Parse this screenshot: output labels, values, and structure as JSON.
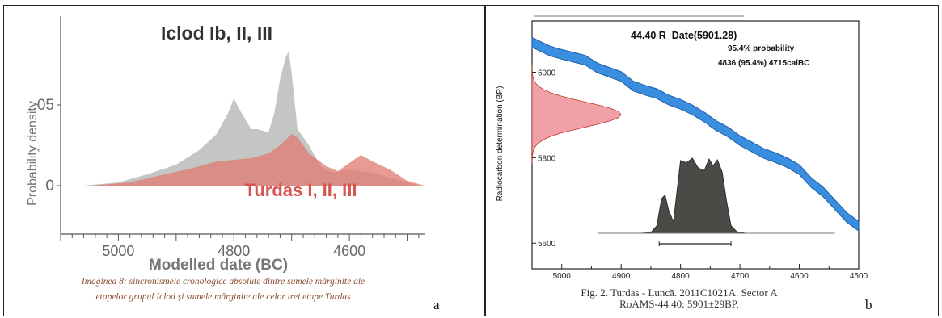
{
  "panel_a": {
    "letter": "a",
    "caption_line1": "Imaginea 8: sincronismele cronologice absolute dintre sumele mărginite ale",
    "caption_line2": "etapelor grupul Iclod și sumele mărginite ale celor trei etape Turdaș"
  },
  "panel_b": {
    "letter": "b",
    "caption_line1": "Fig. 2. Turdas - Luncă. 2011C1021A. Sector A",
    "caption_line2": "RoAMS-44.40: 5901±29BP."
  },
  "colors": {
    "grey_fill": "#b9bcb8",
    "red_fill": "#e07a72",
    "red_label": "#d9534f",
    "blue_curve": "#3a8ee0",
    "dark_fill": "#4a4b46",
    "pink_fill": "#f2a0a8"
  },
  "chart_data": [
    {
      "type": "area",
      "title": "",
      "xlabel": "Modelled date (BC)",
      "ylabel": "Probability density",
      "xlim": [
        5100,
        4470
      ],
      "ylim": [
        -0.03,
        0.105
      ],
      "x_ticks": [
        "5000",
        "4800",
        "4600"
      ],
      "x_tick_values": [
        5000,
        4800,
        4600
      ],
      "y_ticks": [
        ".05",
        "0"
      ],
      "y_tick_values": [
        0.05,
        0
      ],
      "annotations": [
        "Iclod Ib, II, III",
        "Turdas I, II, III"
      ],
      "series": [
        {
          "name": "Iclod Ib, II, III",
          "color": "#b9bcb8",
          "x": [
            5060,
            5000,
            4950,
            4900,
            4860,
            4830,
            4810,
            4800,
            4790,
            4770,
            4760,
            4740,
            4730,
            4720,
            4710,
            4705,
            4700,
            4690,
            4680,
            4670,
            4650,
            4630,
            4600,
            4560,
            4520,
            4480
          ],
          "y": [
            0,
            0.002,
            0.007,
            0.013,
            0.022,
            0.032,
            0.045,
            0.054,
            0.047,
            0.035,
            0.035,
            0.033,
            0.045,
            0.066,
            0.08,
            0.083,
            0.07,
            0.035,
            0.03,
            0.025,
            0.012,
            0.008,
            0.01,
            0.008,
            0.004,
            0
          ]
        },
        {
          "name": "Turdas I, II, III",
          "color": "#e07a72",
          "x": [
            5050,
            4980,
            4920,
            4870,
            4830,
            4800,
            4770,
            4740,
            4720,
            4700,
            4690,
            4670,
            4640,
            4620,
            4600,
            4580,
            4560,
            4530,
            4500,
            4470
          ],
          "y": [
            0,
            0.002,
            0.007,
            0.011,
            0.015,
            0.016,
            0.017,
            0.02,
            0.025,
            0.032,
            0.03,
            0.02,
            0.012,
            0.009,
            0.014,
            0.019,
            0.015,
            0.01,
            0.003,
            0
          ]
        }
      ]
    },
    {
      "type": "line",
      "title": "44.40 R_Date(5901.28)",
      "annotations": [
        "95.4% probability",
        "4836 (95.4%) 4715calBC"
      ],
      "xlabel": "",
      "ylabel": "Radiocarbon determination (BP)",
      "xlim": [
        5050,
        4500
      ],
      "ylim": [
        5540,
        6120
      ],
      "x_ticks": [
        "5000",
        "4900",
        "4800",
        "4700",
        "4600",
        "4500"
      ],
      "x_tick_values": [
        5000,
        4900,
        4800,
        4700,
        4600,
        4500
      ],
      "y_ticks": [
        "6000",
        "5800",
        "5600"
      ],
      "y_tick_values": [
        6000,
        5800,
        5600
      ],
      "calibration_curve": {
        "color": "#3a8ee0",
        "x": [
          5050,
          5020,
          5000,
          4980,
          4960,
          4940,
          4920,
          4900,
          4880,
          4860,
          4840,
          4820,
          4800,
          4780,
          4760,
          4740,
          4720,
          4700,
          4680,
          4660,
          4640,
          4620,
          4600,
          4580,
          4560,
          4540,
          4520,
          4500
        ],
        "y": [
          6070,
          6050,
          6042,
          6035,
          6028,
          6010,
          6000,
          5990,
          5968,
          5958,
          5950,
          5935,
          5925,
          5912,
          5895,
          5875,
          5860,
          5840,
          5825,
          5810,
          5800,
          5788,
          5772,
          5742,
          5720,
          5690,
          5660,
          5640
        ]
      },
      "measurement": {
        "mean_bp": 5901,
        "sigma_bp": 29,
        "color": "#f2a0a8"
      },
      "calibrated_distribution": {
        "color": "#4a4b46",
        "x": [
          4870,
          4850,
          4840,
          4832,
          4826,
          4820,
          4812,
          4800,
          4790,
          4780,
          4770,
          4760,
          4752,
          4745,
          4738,
          4730,
          4722,
          4715,
          4705,
          4690
        ],
        "y": [
          0,
          0.01,
          0.1,
          0.45,
          0.5,
          0.3,
          0.15,
          0.95,
          0.92,
          0.98,
          0.85,
          0.82,
          0.97,
          0.88,
          0.96,
          0.8,
          0.4,
          0.1,
          0.02,
          0
        ]
      },
      "range_bar": [
        4836,
        4715
      ]
    }
  ]
}
